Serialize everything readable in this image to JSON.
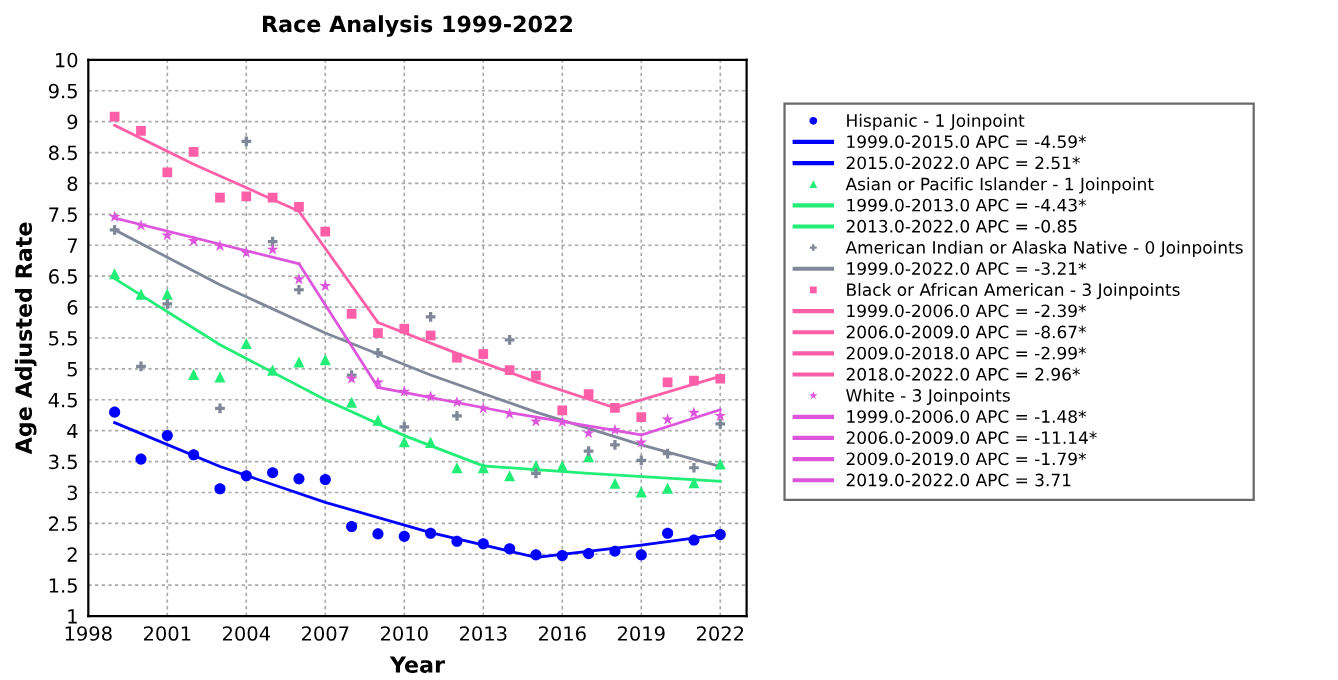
{
  "chart_data": {
    "type": "scatter",
    "title": "Race Analysis 1999-2022",
    "xlabel": "Year",
    "ylabel": "Age Adjusted Rate",
    "x": [
      1999,
      2000,
      2001,
      2002,
      2003,
      2004,
      2005,
      2006,
      2007,
      2008,
      2009,
      2010,
      2011,
      2012,
      2013,
      2014,
      2015,
      2016,
      2017,
      2018,
      2019,
      2020,
      2021,
      2022
    ],
    "xlim": [
      1998,
      2023
    ],
    "xticks": [
      1998,
      2001,
      2004,
      2007,
      2010,
      2013,
      2016,
      2019,
      2022
    ],
    "ylim": [
      1,
      10
    ],
    "yticks": [
      1,
      1.5,
      2,
      2.5,
      3,
      3.5,
      4,
      4.5,
      5,
      5.5,
      6,
      6.5,
      7,
      7.5,
      8,
      8.5,
      9,
      9.5,
      10
    ],
    "grid": true,
    "legend": "right",
    "series": [
      {
        "name": "Hispanic - 1 Joinpoint",
        "marker": "circle",
        "color": "#0000ff",
        "values": [
          4.3,
          3.54,
          3.92,
          3.61,
          3.06,
          3.27,
          3.32,
          3.22,
          3.21,
          2.45,
          2.33,
          2.29,
          2.34,
          2.21,
          2.17,
          2.09,
          1.99,
          1.98,
          2.01,
          2.05,
          1.99,
          2.34,
          2.23,
          2.32
        ]
      },
      {
        "name": "1999.0-2015.0 APC = -4.59*",
        "type": "line",
        "color": "#0000ff",
        "x": [
          1999,
          2003,
          2007,
          2011,
          2015
        ],
        "values": [
          4.13,
          3.42,
          2.84,
          2.35,
          1.95
        ]
      },
      {
        "name": "2015.0-2022.0 APC = 2.51*",
        "type": "line",
        "color": "#0000ff",
        "x": [
          2015,
          2019,
          2022
        ],
        "values": [
          1.95,
          2.15,
          2.32
        ]
      },
      {
        "name": "Asian or Pacific Islander - 1 Joinpoint",
        "marker": "triangle",
        "color": "#22ee77",
        "values": [
          6.54,
          6.21,
          6.21,
          4.91,
          4.87,
          5.41,
          4.98,
          5.11,
          5.15,
          4.46,
          4.17,
          3.82,
          3.81,
          3.4,
          3.4,
          3.27,
          3.43,
          3.43,
          3.58,
          3.15,
          3.01,
          3.07,
          3.16,
          3.46
        ]
      },
      {
        "name": "1999.0-2013.0 APC = -4.43*",
        "type": "line",
        "color": "#22ee77",
        "x": [
          1999,
          2003,
          2007,
          2010,
          2013
        ],
        "values": [
          6.46,
          5.39,
          4.5,
          3.92,
          3.43
        ]
      },
      {
        "name": "2013.0-2022.0 APC = -0.85",
        "type": "line",
        "color": "#22ee77",
        "x": [
          2013,
          2017,
          2022
        ],
        "values": [
          3.43,
          3.31,
          3.18
        ]
      },
      {
        "name": "American Indian or Alaska Native - 0 Joinpoints",
        "marker": "cross",
        "color": "#7f8799",
        "values": [
          7.25,
          5.04,
          6.05,
          null,
          4.36,
          8.68,
          7.06,
          6.28,
          null,
          4.9,
          5.26,
          4.06,
          5.84,
          4.24,
          null,
          5.47,
          3.31,
          null,
          3.67,
          3.77,
          3.52,
          3.63,
          3.4,
          4.11
        ]
      },
      {
        "name": "1999.0-2022.0 APC = -3.21*",
        "type": "line",
        "color": "#7f8799",
        "x": [
          1999,
          2003,
          2007,
          2011,
          2015,
          2019,
          2022
        ],
        "values": [
          7.25,
          6.36,
          5.58,
          4.9,
          4.3,
          3.77,
          3.42
        ]
      },
      {
        "name": "Black or African American - 3 Joinpoints",
        "marker": "square",
        "color": "#ff5fa8",
        "values": [
          9.08,
          8.85,
          8.18,
          8.51,
          7.77,
          7.79,
          7.77,
          7.62,
          7.22,
          5.89,
          5.58,
          5.65,
          5.54,
          5.18,
          5.24,
          4.98,
          4.89,
          4.33,
          4.59,
          4.37,
          4.22,
          4.78,
          4.81,
          4.84
        ]
      },
      {
        "name": "1999.0-2006.0 APC = -2.39*",
        "type": "line",
        "color": "#ff5fa8",
        "x": [
          1999,
          2002,
          2006
        ],
        "values": [
          8.94,
          8.31,
          7.55
        ]
      },
      {
        "name": "2006.0-2009.0 APC = -8.67*",
        "type": "line",
        "color": "#ff5fa8",
        "x": [
          2006,
          2009
        ],
        "values": [
          7.55,
          5.75
        ]
      },
      {
        "name": "2009.0-2018.0 APC = -2.99*",
        "type": "line",
        "color": "#ff5fa8",
        "x": [
          2009,
          2012,
          2015,
          2018
        ],
        "values": [
          5.75,
          5.25,
          4.79,
          4.37
        ]
      },
      {
        "name": "2018.0-2022.0 APC = 2.96*",
        "type": "line",
        "color": "#ff5fa8",
        "x": [
          2018,
          2022
        ],
        "values": [
          4.37,
          4.88
        ]
      },
      {
        "name": "White - 3 Joinpoints",
        "marker": "star",
        "color": "#dd55dd",
        "values": [
          7.46,
          7.32,
          7.16,
          7.07,
          6.99,
          6.88,
          6.93,
          6.45,
          6.34,
          4.84,
          4.78,
          4.63,
          4.55,
          4.46,
          4.36,
          4.27,
          4.15,
          4.14,
          3.96,
          4.01,
          3.81,
          4.18,
          4.29,
          4.24
        ]
      },
      {
        "name": "1999.0-2006.0 APC = -1.48*",
        "type": "line",
        "color": "#dd55dd",
        "x": [
          1999,
          2006
        ],
        "values": [
          7.44,
          6.7
        ]
      },
      {
        "name": "2006.0-2009.0 APC = -11.14*",
        "type": "line",
        "color": "#dd55dd",
        "x": [
          2006,
          2009
        ],
        "values": [
          6.7,
          4.7
        ]
      },
      {
        "name": "2009.0-2019.0 APC = -1.79*",
        "type": "line",
        "color": "#dd55dd",
        "x": [
          2009,
          2014,
          2019
        ],
        "values": [
          4.7,
          4.29,
          3.93
        ]
      },
      {
        "name": "2019.0-2022.0 APC = 3.71",
        "type": "line",
        "color": "#dd55dd",
        "x": [
          2019,
          2022
        ],
        "values": [
          3.93,
          4.34
        ]
      }
    ]
  }
}
